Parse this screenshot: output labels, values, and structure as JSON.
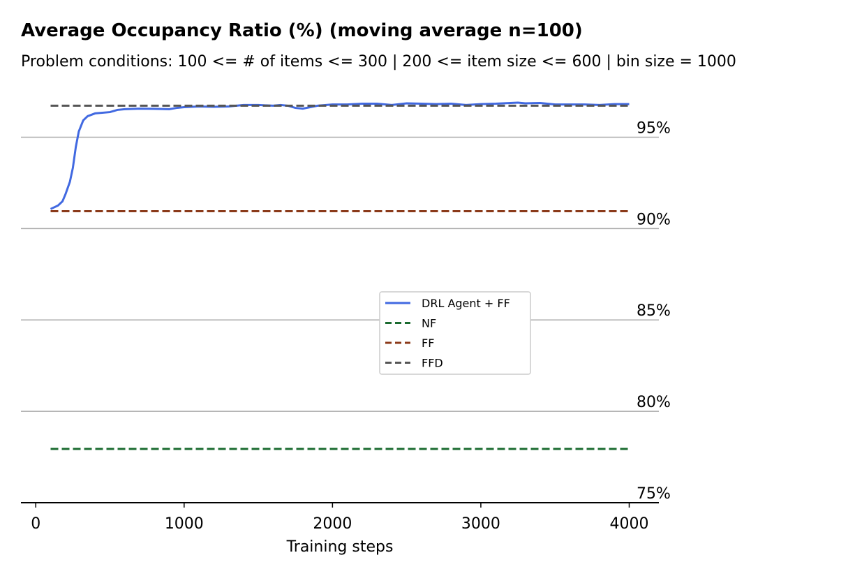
{
  "chart_data": {
    "type": "line",
    "title": "Average Occupancy Ratio (%) (moving average n=100)",
    "subtitle": "Problem conditions: 100 <= # of items <= 300 | 200 <= item size <= 600 | bin size = 1000",
    "x_label": "Training steps",
    "xlim": [
      -100,
      4200
    ],
    "xticks": [
      0,
      1000,
      2000,
      3000,
      4000
    ],
    "ylim": [
      75,
      97.5
    ],
    "yticks": [
      {
        "value": 75,
        "label": "75%"
      },
      {
        "value": 80,
        "label": "80%"
      },
      {
        "value": 85,
        "label": "85%"
      },
      {
        "value": 90,
        "label": "90%"
      },
      {
        "value": 95,
        "label": "95%"
      }
    ],
    "grid": true,
    "series": [
      {
        "name": "DRL Agent + FF",
        "color": "#4169e1",
        "dashed": false,
        "x": [
          100,
          150,
          180,
          200,
          230,
          250,
          270,
          290,
          320,
          350,
          400,
          500,
          550,
          600,
          700,
          800,
          900,
          950,
          1000,
          1100,
          1200,
          1300,
          1400,
          1500,
          1600,
          1650,
          1700,
          1750,
          1800,
          1900,
          2000,
          2100,
          2200,
          2300,
          2400,
          2500,
          2600,
          2700,
          2800,
          2900,
          3000,
          3100,
          3200,
          3250,
          3300,
          3400,
          3500,
          3600,
          3700,
          3800,
          3900,
          4000
        ],
        "values": [
          91.07,
          91.26,
          91.49,
          91.87,
          92.56,
          93.32,
          94.47,
          95.31,
          95.92,
          96.15,
          96.3,
          96.37,
          96.49,
          96.53,
          96.56,
          96.55,
          96.53,
          96.6,
          96.64,
          96.68,
          96.66,
          96.68,
          96.76,
          96.76,
          96.72,
          96.76,
          96.72,
          96.6,
          96.56,
          96.72,
          96.79,
          96.79,
          96.83,
          96.83,
          96.76,
          96.85,
          96.83,
          96.81,
          96.83,
          96.76,
          96.81,
          96.83,
          96.87,
          96.89,
          96.85,
          96.87,
          96.79,
          96.79,
          96.79,
          96.76,
          96.81,
          96.81
        ]
      },
      {
        "name": "NF",
        "color": "#1b6b30",
        "dashed": true,
        "x": [
          100,
          4000
        ],
        "values": [
          77.94,
          77.94
        ]
      },
      {
        "name": "FF",
        "color": "#8b3a1a",
        "dashed": true,
        "x": [
          100,
          4000
        ],
        "values": [
          90.95,
          90.95
        ]
      },
      {
        "name": "FFD",
        "color": "#555555",
        "dashed": true,
        "x": [
          100,
          4000
        ],
        "values": [
          96.72,
          96.72
        ]
      }
    ]
  }
}
